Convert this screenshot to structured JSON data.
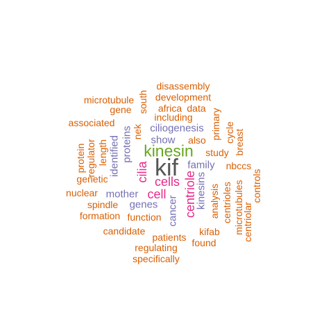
{
  "palette": {
    "orange": "#d95f02",
    "purple": "#7570b3",
    "magenta": "#e7298a",
    "green": "#66a61e",
    "gray": "#555555"
  },
  "words": [
    {
      "text": "kif",
      "color": "gray",
      "vertical": false
    },
    {
      "text": "kinesin",
      "color": "green",
      "vertical": false
    },
    {
      "text": "cells",
      "color": "magenta",
      "vertical": false
    },
    {
      "text": "cilia",
      "color": "magenta",
      "vertical": true
    },
    {
      "text": "cell",
      "color": "magenta",
      "vertical": false
    },
    {
      "text": "centriole",
      "color": "magenta",
      "vertical": true
    },
    {
      "text": "ciliogenesis",
      "color": "purple",
      "vertical": false
    },
    {
      "text": "show",
      "color": "purple",
      "vertical": false
    },
    {
      "text": "family",
      "color": "purple",
      "vertical": false
    },
    {
      "text": "mother",
      "color": "purple",
      "vertical": false
    },
    {
      "text": "genes",
      "color": "purple",
      "vertical": false
    },
    {
      "text": "proteins",
      "color": "purple",
      "vertical": true
    },
    {
      "text": "identified",
      "color": "purple",
      "vertical": true
    },
    {
      "text": "kinesins",
      "color": "purple",
      "vertical": true
    },
    {
      "text": "cancer",
      "color": "purple",
      "vertical": true
    },
    {
      "text": "disassembly",
      "color": "orange",
      "vertical": false
    },
    {
      "text": "development",
      "color": "orange",
      "vertical": false
    },
    {
      "text": "microtubule",
      "color": "orange",
      "vertical": false
    },
    {
      "text": "south",
      "color": "orange",
      "vertical": true
    },
    {
      "text": "africa",
      "color": "orange",
      "vertical": false
    },
    {
      "text": "data",
      "color": "orange",
      "vertical": false
    },
    {
      "text": "gene",
      "color": "orange",
      "vertical": false
    },
    {
      "text": "including",
      "color": "orange",
      "vertical": false
    },
    {
      "text": "primary",
      "color": "orange",
      "vertical": true
    },
    {
      "text": "associated",
      "color": "orange",
      "vertical": false
    },
    {
      "text": "nek",
      "color": "orange",
      "vertical": true
    },
    {
      "text": "cycle",
      "color": "orange",
      "vertical": true
    },
    {
      "text": "also",
      "color": "orange",
      "vertical": false
    },
    {
      "text": "breast",
      "color": "orange",
      "vertical": true
    },
    {
      "text": "length",
      "color": "orange",
      "vertical": true
    },
    {
      "text": "protein",
      "color": "orange",
      "vertical": true
    },
    {
      "text": "regulator",
      "color": "orange",
      "vertical": true
    },
    {
      "text": "study",
      "color": "orange",
      "vertical": false
    },
    {
      "text": "nbccs",
      "color": "orange",
      "vertical": false
    },
    {
      "text": "genetic",
      "color": "orange",
      "vertical": false
    },
    {
      "text": "nuclear",
      "color": "orange",
      "vertical": false
    },
    {
      "text": "analysis",
      "color": "orange",
      "vertical": true
    },
    {
      "text": "centrioles",
      "color": "orange",
      "vertical": true
    },
    {
      "text": "microtubules",
      "color": "orange",
      "vertical": true
    },
    {
      "text": "centriolar",
      "color": "orange",
      "vertical": true
    },
    {
      "text": "controls",
      "color": "orange",
      "vertical": true
    },
    {
      "text": "spindle",
      "color": "orange",
      "vertical": false
    },
    {
      "text": "formation",
      "color": "orange",
      "vertical": false
    },
    {
      "text": "function",
      "color": "orange",
      "vertical": false
    },
    {
      "text": "candidate",
      "color": "orange",
      "vertical": false
    },
    {
      "text": "kifab",
      "color": "orange",
      "vertical": false
    },
    {
      "text": "patients",
      "color": "orange",
      "vertical": false
    },
    {
      "text": "found",
      "color": "orange",
      "vertical": false
    },
    {
      "text": "regulating",
      "color": "orange",
      "vertical": false
    },
    {
      "text": "specifically",
      "color": "orange",
      "vertical": false
    }
  ]
}
